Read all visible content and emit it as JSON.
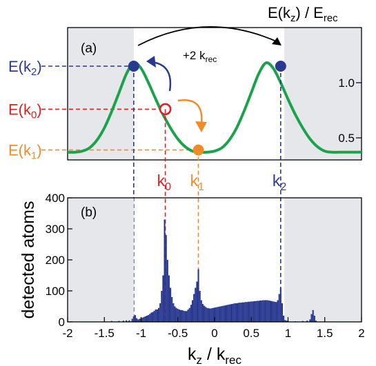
{
  "chart_data": [
    {
      "type": "line",
      "panel_label": "(a)",
      "ylabel_main": "E(k",
      "ylabel_sub": "z",
      "ylabel_tail": ") / E",
      "ylabel_sub2": "rec",
      "xlim": [
        -2,
        2
      ],
      "ylim_display": [
        0.3,
        1.5
      ],
      "yticks": [
        0.5,
        1.0
      ],
      "ytick_labels": [
        "0.5",
        "1.0"
      ],
      "shaded_regions": [
        [
          -2,
          -1.1
        ],
        [
          0.95,
          2
        ]
      ],
      "series": [
        {
          "color": "#1aa34a",
          "x": [
            -2.0,
            -1.9,
            -1.8,
            -1.7,
            -1.6,
            -1.5,
            -1.4,
            -1.3,
            -1.2,
            -1.1,
            -1.0,
            -0.9,
            -0.8,
            -0.7,
            -0.6,
            -0.5,
            -0.4,
            -0.3,
            -0.2,
            -0.1,
            0.0,
            0.1,
            0.2,
            0.3,
            0.4,
            0.5,
            0.6,
            0.7,
            0.8,
            0.9,
            1.0,
            1.1,
            1.2,
            1.3,
            1.4,
            1.5,
            1.6,
            1.7,
            1.8,
            1.9,
            2.0
          ],
          "y": [
            0.37,
            0.37,
            0.38,
            0.41,
            0.48,
            0.59,
            0.74,
            0.91,
            1.08,
            1.18,
            1.13,
            1.0,
            0.85,
            0.71,
            0.59,
            0.49,
            0.42,
            0.38,
            0.37,
            0.37,
            0.38,
            0.41,
            0.48,
            0.59,
            0.74,
            0.91,
            1.08,
            1.18,
            1.13,
            1.0,
            0.85,
            0.71,
            0.59,
            0.49,
            0.42,
            0.38,
            0.37,
            0.37,
            0.37,
            0.37,
            0.37
          ]
        }
      ],
      "points": [
        {
          "name": "k2-left",
          "x": -1.1,
          "y": 1.15,
          "color": "#2a3990",
          "filled": true
        },
        {
          "name": "k0",
          "x": -0.67,
          "y": 0.76,
          "color": "#e02020",
          "filled": false
        },
        {
          "name": "k1",
          "x": -0.22,
          "y": 0.39,
          "color": "#f08c28",
          "filled": true
        },
        {
          "name": "k2-right",
          "x": 0.9,
          "y": 1.15,
          "color": "#2a3990",
          "filled": true
        }
      ],
      "level_labels": [
        {
          "main": "E(k",
          "sub": "2",
          "tail": ")",
          "y": 1.15,
          "color": "#2a3990"
        },
        {
          "main": "E(k",
          "sub": "0",
          "tail": ")",
          "y": 0.76,
          "color": "#e02020"
        },
        {
          "main": "E(k",
          "sub": "1",
          "tail": ")",
          "y": 0.39,
          "color": "#f08c28"
        }
      ],
      "annotation": {
        "main": "+2 k",
        "sub": "rec"
      },
      "k_labels": [
        {
          "main": "k",
          "sub": "0",
          "x": -0.67,
          "color": "#e02020"
        },
        {
          "main": "k",
          "sub": "1",
          "x": -0.22,
          "color": "#f08c28"
        },
        {
          "main": "k",
          "sub": "2",
          "x": 0.9,
          "color": "#2a3990"
        }
      ]
    },
    {
      "type": "bar",
      "panel_label": "(b)",
      "ylabel": "detected atoms",
      "xlabel_main": "k",
      "xlabel_sub": "z",
      "xlabel_tail": " / k",
      "xlabel_sub2": "rec",
      "xlim": [
        -2,
        2
      ],
      "ylim": [
        0,
        400
      ],
      "xticks": [
        -2,
        -1.5,
        -1,
        -0.5,
        0,
        0.5,
        1,
        1.5,
        2
      ],
      "xtick_labels": [
        "-2",
        "-1.5",
        "-1",
        "-0.5",
        "0",
        "0.5",
        "1",
        "1.5",
        "2"
      ],
      "yticks": [
        0,
        100,
        200,
        300,
        400
      ],
      "ytick_labels": [
        "0",
        "100",
        "200",
        "300",
        "400"
      ],
      "shaded_regions": [
        [
          -2,
          -1.1
        ],
        [
          0.95,
          2
        ]
      ],
      "bar_color": "#2a3990",
      "bin_width": 0.02,
      "bins": [
        [
          -1.5,
          2
        ],
        [
          -1.4,
          3
        ],
        [
          -1.3,
          3
        ],
        [
          -1.24,
          4
        ],
        [
          -1.2,
          5
        ],
        [
          -1.16,
          5
        ],
        [
          -1.12,
          10
        ],
        [
          -1.1,
          18
        ],
        [
          -1.08,
          22
        ],
        [
          -1.06,
          12
        ],
        [
          -1.04,
          8
        ],
        [
          -1.02,
          10
        ],
        [
          -1.0,
          12
        ],
        [
          -0.98,
          14
        ],
        [
          -0.96,
          16
        ],
        [
          -0.94,
          18
        ],
        [
          -0.92,
          20
        ],
        [
          -0.9,
          22
        ],
        [
          -0.88,
          26
        ],
        [
          -0.86,
          30
        ],
        [
          -0.84,
          32
        ],
        [
          -0.82,
          36
        ],
        [
          -0.8,
          40
        ],
        [
          -0.78,
          40
        ],
        [
          -0.76,
          45
        ],
        [
          -0.74,
          60
        ],
        [
          -0.72,
          100
        ],
        [
          -0.7,
          150
        ],
        [
          -0.68,
          330
        ],
        [
          -0.66,
          280
        ],
        [
          -0.64,
          200
        ],
        [
          -0.62,
          150
        ],
        [
          -0.6,
          110
        ],
        [
          -0.58,
          80
        ],
        [
          -0.56,
          60
        ],
        [
          -0.54,
          50
        ],
        [
          -0.52,
          45
        ],
        [
          -0.5,
          42
        ],
        [
          -0.48,
          40
        ],
        [
          -0.46,
          38
        ],
        [
          -0.44,
          38
        ],
        [
          -0.42,
          36
        ],
        [
          -0.4,
          35
        ],
        [
          -0.38,
          35
        ],
        [
          -0.36,
          40
        ],
        [
          -0.34,
          45
        ],
        [
          -0.32,
          55
        ],
        [
          -0.3,
          70
        ],
        [
          -0.28,
          90
        ],
        [
          -0.26,
          110
        ],
        [
          -0.24,
          130
        ],
        [
          -0.22,
          170
        ],
        [
          -0.2,
          100
        ],
        [
          -0.18,
          70
        ],
        [
          -0.16,
          58
        ],
        [
          -0.14,
          52
        ],
        [
          -0.12,
          48
        ],
        [
          -0.1,
          45
        ],
        [
          -0.08,
          44
        ],
        [
          -0.06,
          43
        ],
        [
          -0.04,
          44
        ],
        [
          -0.02,
          45
        ],
        [
          0.0,
          46
        ],
        [
          0.02,
          47
        ],
        [
          0.04,
          48
        ],
        [
          0.06,
          49
        ],
        [
          0.08,
          50
        ],
        [
          0.1,
          51
        ],
        [
          0.12,
          52
        ],
        [
          0.14,
          53
        ],
        [
          0.16,
          54
        ],
        [
          0.18,
          55
        ],
        [
          0.2,
          56
        ],
        [
          0.22,
          57
        ],
        [
          0.24,
          58
        ],
        [
          0.26,
          59
        ],
        [
          0.28,
          60
        ],
        [
          0.3,
          60
        ],
        [
          0.32,
          61
        ],
        [
          0.34,
          62
        ],
        [
          0.36,
          62
        ],
        [
          0.38,
          63
        ],
        [
          0.4,
          63
        ],
        [
          0.42,
          64
        ],
        [
          0.44,
          64
        ],
        [
          0.46,
          65
        ],
        [
          0.48,
          65
        ],
        [
          0.5,
          66
        ],
        [
          0.52,
          66
        ],
        [
          0.54,
          67
        ],
        [
          0.56,
          67
        ],
        [
          0.58,
          68
        ],
        [
          0.6,
          68
        ],
        [
          0.62,
          69
        ],
        [
          0.64,
          69
        ],
        [
          0.66,
          70
        ],
        [
          0.68,
          70
        ],
        [
          0.7,
          70
        ],
        [
          0.72,
          70
        ],
        [
          0.74,
          69
        ],
        [
          0.76,
          68
        ],
        [
          0.78,
          67
        ],
        [
          0.8,
          66
        ],
        [
          0.82,
          65
        ],
        [
          0.84,
          64
        ],
        [
          0.86,
          70
        ],
        [
          0.88,
          90
        ],
        [
          0.9,
          110
        ],
        [
          0.92,
          60
        ],
        [
          0.94,
          20
        ],
        [
          0.96,
          6
        ],
        [
          0.98,
          4
        ],
        [
          1.0,
          3
        ],
        [
          1.1,
          2
        ],
        [
          1.2,
          3
        ],
        [
          1.26,
          4
        ],
        [
          1.3,
          8
        ],
        [
          1.32,
          25
        ],
        [
          1.34,
          38
        ],
        [
          1.36,
          20
        ],
        [
          1.38,
          4
        ],
        [
          1.5,
          2
        ]
      ],
      "vlines": [
        {
          "x": -1.1,
          "color": "#2a3990"
        },
        {
          "x": -0.67,
          "color": "#e02020"
        },
        {
          "x": -0.22,
          "color": "#f08c28"
        },
        {
          "x": 0.9,
          "color": "#2a3990"
        }
      ]
    }
  ]
}
